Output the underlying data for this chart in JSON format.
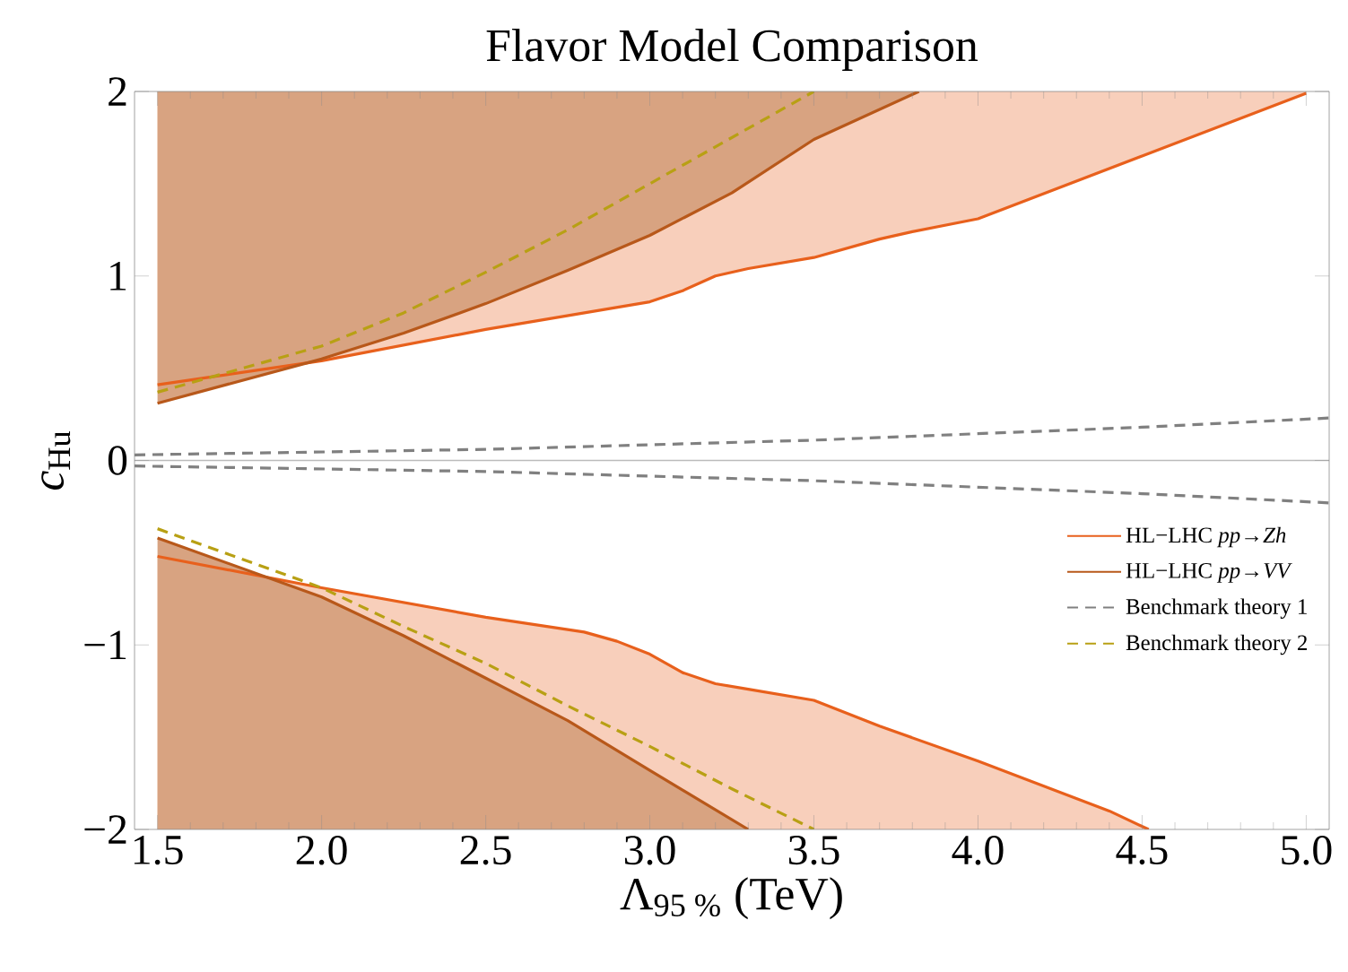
{
  "chart_data": {
    "type": "line",
    "title": "Flavor Model Comparison",
    "xlabel": "Λ$_{95 %}$ (TeV)",
    "ylabel": "*c*$_{Hu}$",
    "xlim": [
      1.43,
      5.07
    ],
    "ylim": [
      -2,
      2
    ],
    "xticks": [
      1.5,
      {
        "value": 2,
        "label": "2.0"
      },
      2.5,
      {
        "value": 3,
        "label": "3.0"
      },
      3.5,
      {
        "value": 4,
        "label": "4.0"
      },
      4.5,
      {
        "value": 5,
        "label": "5.0"
      }
    ],
    "yticks": [
      {
        "value": -2,
        "label": "−2"
      },
      {
        "value": -1,
        "label": "−1"
      },
      0,
      1,
      2
    ],
    "grid": false,
    "legend": "right",
    "marker": "none",
    "ref_lines": [
      {
        "axis": "y",
        "value": 0,
        "color": "#bbbbbb"
      }
    ],
    "series": [
      {
        "name": "HL−LHC *pp*→*Zh*",
        "color": "#e8601c",
        "x": [
          1.5,
          2.0,
          2.5,
          2.8,
          3.0,
          3.1,
          3.2,
          3.3,
          3.5,
          3.7,
          3.8,
          4.0,
          4.5,
          5.0
        ],
        "values": [
          0.41,
          0.54,
          0.71,
          0.8,
          0.86,
          0.92,
          1.0,
          1.04,
          1.1,
          1.2,
          1.24,
          1.31,
          1.65,
          1.99
        ],
        "lower": [
          0.41,
          0.54,
          0.71,
          0.8,
          0.86,
          0.92,
          1.0,
          1.04,
          1.1,
          1.2,
          1.24,
          1.31,
          1.65,
          1.99
        ],
        "upper": [
          2,
          2,
          2,
          2,
          2,
          2,
          2,
          2,
          2,
          2,
          2,
          2,
          2,
          2
        ]
      },
      {
        "color": "#e8601c",
        "x": [
          1.5,
          2.0,
          2.5,
          2.8,
          2.9,
          3.0,
          3.1,
          3.2,
          3.3,
          3.5,
          3.7,
          4.0,
          4.4,
          4.52
        ],
        "values": [
          -0.52,
          -0.69,
          -0.85,
          -0.93,
          -0.98,
          -1.05,
          -1.15,
          -1.21,
          -1.24,
          -1.3,
          -1.44,
          -1.63,
          -1.9,
          -2.0
        ],
        "lower": [
          -2,
          -2,
          -2,
          -2,
          -2,
          -2,
          -2,
          -2,
          -2,
          -2,
          -2,
          -2,
          -2,
          -2
        ],
        "upper": [
          -0.52,
          -0.69,
          -0.85,
          -0.93,
          -0.98,
          -1.05,
          -1.15,
          -1.21,
          -1.24,
          -1.3,
          -1.44,
          -1.63,
          -1.9,
          -2.0
        ]
      },
      {
        "name": "HL−LHC *pp*→*VV*",
        "color": "#b8581a",
        "x": [
          1.5,
          2.0,
          2.25,
          2.5,
          2.75,
          3.0,
          3.25,
          3.5,
          3.82
        ],
        "values": [
          0.31,
          0.55,
          0.69,
          0.85,
          1.03,
          1.22,
          1.45,
          1.74,
          2.0
        ],
        "lower": [
          0.31,
          0.55,
          0.69,
          0.85,
          1.03,
          1.22,
          1.45,
          1.74,
          2.0
        ],
        "upper": [
          2,
          2,
          2,
          2,
          2,
          2,
          2,
          2,
          2
        ]
      },
      {
        "color": "#b8581a",
        "x": [
          1.5,
          2.0,
          2.25,
          2.5,
          2.75,
          3.0,
          3.3
        ],
        "values": [
          -0.42,
          -0.74,
          -0.95,
          -1.18,
          -1.41,
          -1.68,
          -2.0
        ],
        "lower": [
          -2,
          -2,
          -2,
          -2,
          -2,
          -2,
          -2
        ],
        "upper": [
          -0.42,
          -0.74,
          -0.95,
          -1.18,
          -1.41,
          -1.68,
          -2.0
        ]
      },
      {
        "name": "Benchmark theory 1",
        "line_style": "dashed",
        "color": "#808080",
        "x": [
          1.43,
          2.5,
          3.5,
          4.5,
          5.07
        ],
        "values": [
          0.03,
          0.06,
          0.11,
          0.18,
          0.23
        ]
      },
      {
        "line_style": "dashed",
        "color": "#808080",
        "x": [
          1.43,
          2.5,
          3.5,
          4.5,
          5.07
        ],
        "values": [
          -0.03,
          -0.06,
          -0.11,
          -0.18,
          -0.23
        ]
      },
      {
        "name": "Benchmark theory 2",
        "line_style": "dashed",
        "color": "#b8a014",
        "x": [
          1.5,
          2.0,
          2.25,
          2.5,
          2.75,
          3.0,
          3.25,
          3.5
        ],
        "values": [
          0.37,
          0.62,
          0.8,
          1.02,
          1.25,
          1.5,
          1.75,
          2.0
        ]
      },
      {
        "line_style": "dashed",
        "color": "#b8a014",
        "x": [
          1.5,
          2.0,
          2.25,
          2.5,
          2.75,
          3.0,
          3.25,
          3.5
        ],
        "values": [
          -0.37,
          -0.69,
          -0.9,
          -1.1,
          -1.33,
          -1.55,
          -1.78,
          -2.0
        ]
      }
    ]
  }
}
